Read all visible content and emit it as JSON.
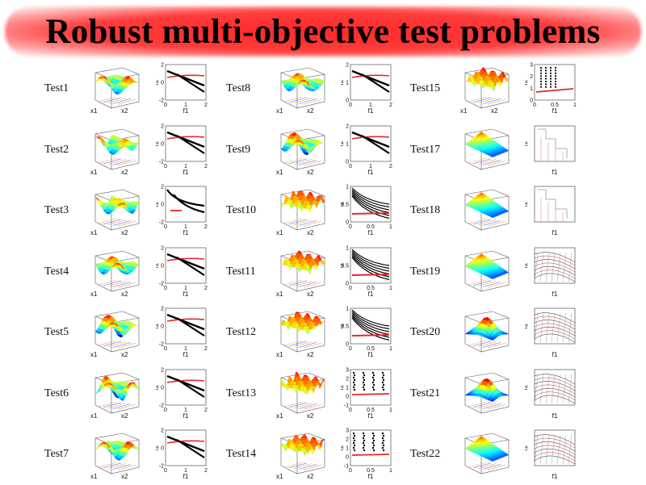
{
  "title": "Robust multi-objective test problems",
  "columns": [
    {
      "tests": [
        {
          "name": "Test1",
          "pf": "lines2",
          "xlab": "f1",
          "ylab": "f2",
          "xt": [
            "0",
            "1",
            "2"
          ],
          "yt": [
            "-2",
            "0",
            "2"
          ]
        },
        {
          "name": "Test2",
          "pf": "lines2",
          "xlab": "f1",
          "ylab": "f2",
          "xt": [
            "0",
            "1",
            "2"
          ],
          "yt": [
            "-2",
            "0",
            "2"
          ]
        },
        {
          "name": "Test3",
          "pf": "curves",
          "xlab": "f1",
          "ylab": "f2",
          "xt": [
            "0",
            "1",
            "2"
          ],
          "yt": [
            "-2",
            "0",
            "2"
          ]
        },
        {
          "name": "Test4",
          "pf": "lines2",
          "xlab": "f1",
          "ylab": "f2",
          "xt": [
            "0",
            "1",
            "2"
          ],
          "yt": [
            "-2",
            "0",
            "2"
          ]
        },
        {
          "name": "Test5",
          "pf": "lines2",
          "xlab": "f1",
          "ylab": "f2",
          "xt": [
            "0",
            "1",
            "2"
          ],
          "yt": [
            "-2",
            "0",
            "2"
          ]
        },
        {
          "name": "Test6",
          "pf": "lines2",
          "xlab": "f1",
          "ylab": "f2",
          "xt": [
            "0",
            "1",
            "2"
          ],
          "yt": [
            "-2",
            "0",
            "2"
          ]
        },
        {
          "name": "Test7",
          "pf": "lines2",
          "xlab": "f1",
          "ylab": "f2",
          "xt": [
            "0",
            "1",
            "2"
          ],
          "yt": [
            "-2",
            "0",
            "2"
          ]
        }
      ]
    },
    {
      "tests": [
        {
          "name": "Test8",
          "pf": "lines2",
          "xlab": "f1",
          "ylab": "f2",
          "xt": [
            "0",
            "1",
            "2"
          ],
          "yt": [
            "0",
            "1",
            "2"
          ]
        },
        {
          "name": "Test9",
          "pf": "lines2",
          "xlab": "f1",
          "ylab": "f2",
          "xt": [
            "0",
            "1",
            "2"
          ],
          "yt": [
            "0",
            "1",
            "2"
          ]
        },
        {
          "name": "Test10",
          "pf": "fan",
          "xlab": "f1",
          "ylab": "f2",
          "xt": [
            "0",
            "0.5",
            "1"
          ],
          "yt": [
            "0",
            "0.5",
            "1"
          ]
        },
        {
          "name": "Test11",
          "pf": "fan",
          "xlab": "f1",
          "ylab": "f2",
          "xt": [
            "0",
            "0.5",
            "1"
          ],
          "yt": [
            "0",
            "0.5",
            "1"
          ]
        },
        {
          "name": "Test12",
          "pf": "fan",
          "xlab": "f1",
          "ylab": "f2",
          "xt": [
            "0",
            "0.5",
            "1"
          ],
          "yt": [
            "0",
            "0.5",
            "1"
          ]
        },
        {
          "name": "Test13",
          "pf": "disc",
          "xlab": "f1",
          "ylab": "f2",
          "xt": [
            "0",
            "0.5",
            "1"
          ],
          "yt": [
            "-1",
            "0",
            "1",
            "2",
            "3"
          ]
        },
        {
          "name": "Test14",
          "pf": "disc",
          "xlab": "f1",
          "ylab": "f2",
          "xt": [
            "0",
            "0.5",
            "1"
          ],
          "yt": [
            "-1",
            "0",
            "1",
            "2",
            "3"
          ]
        }
      ]
    },
    {
      "tests": [
        {
          "name": "Test15",
          "pf": "dots",
          "xlab": "f1",
          "ylab": "f2",
          "xt": [
            "0",
            "0.5",
            "1"
          ],
          "yt": [
            "0",
            "1",
            "2",
            "3"
          ]
        },
        {
          "name": "Test17",
          "pf": "steps",
          "xlab": "f1",
          "ylab": "f2",
          "xt": [],
          "yt": []
        },
        {
          "name": "Test18",
          "pf": "steps",
          "xlab": "f1",
          "ylab": "f2",
          "xt": [],
          "yt": []
        },
        {
          "name": "Test19",
          "pf": "mesh",
          "xlab": "f1",
          "ylab": "f2",
          "xt": [],
          "yt": []
        },
        {
          "name": "Test20",
          "pf": "mesh",
          "xlab": "f1",
          "ylab": "f2",
          "xt": [],
          "yt": []
        },
        {
          "name": "Test21",
          "pf": "mesh",
          "xlab": "f1",
          "ylab": "f2",
          "xt": [],
          "yt": []
        },
        {
          "name": "Test22",
          "pf": "mesh",
          "xlab": "f1",
          "ylab": "f2",
          "xt": [],
          "yt": []
        }
      ]
    }
  ],
  "colors": {
    "title_glow": "#ff3b3b",
    "front_black": "#000000",
    "front_red": "#e8262a"
  }
}
